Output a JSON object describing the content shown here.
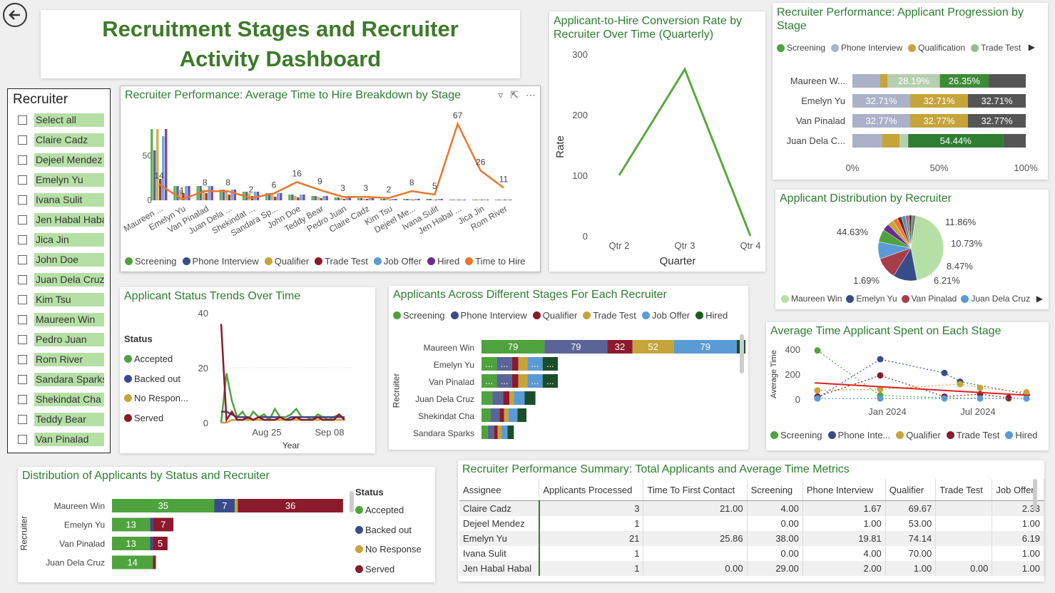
{
  "header": {
    "title": "Recruitment Stages and Recruiter Activity Dashboard"
  },
  "slicer": {
    "title": "Recruiter",
    "items": [
      "Select all",
      "Claire Cadz",
      "Dejeel Mendez",
      "Emelyn Yu",
      "Ivana Sulit",
      "Jen Habal Habal",
      "Jica Jin",
      "John Doe",
      "Juan Dela Cruz",
      "Kim Tsu",
      "Maureen Win",
      "Pedro Juan",
      "Rom River",
      "Sandara Sparks",
      "Shekindat Cha",
      "Teddy Bear",
      "Van Pinalad"
    ]
  },
  "colors": {
    "screening": "#4ea33d",
    "phone": "#384c8a",
    "qualifier": "#c5a43a",
    "trade": "#8b1a2c",
    "joboffer": "#5b9bd5",
    "hired": "#6a2c91",
    "time": "#e8772e",
    "hired2": "#1b5e20"
  },
  "time_to_hire": {
    "title": "Recruiter Performance: Average Time to Hire Breakdown by Stage",
    "legend": [
      "Screening",
      "Phone Interview",
      "Qualifier",
      "Trade Test",
      "Job Offer",
      "Hired",
      "Time to Hire"
    ],
    "chart_data": {
      "type": "bar",
      "categories": [
        "Maureen ...",
        "Emelyn Yu",
        "Van Pinalad",
        "Juan Dela ...",
        "Shekindat ...",
        "Sandara Sp...",
        "John Doe",
        "Teddy Bear",
        "Pedro Juan",
        "Claire Cadz",
        "Kim Tsu",
        "Dejeel Me...",
        "Ivana Sulit",
        "Jen Habal ...",
        "Jica Jin",
        "Rom River"
      ],
      "y_ticks": [
        "0",
        "50"
      ],
      "line_labels": [
        "14",
        "1",
        "8",
        "8",
        "2",
        "6",
        "16",
        "9",
        "3",
        "3",
        "2",
        "8",
        "5",
        "67",
        "26",
        "11"
      ],
      "line_values": [
        14,
        1,
        8,
        8,
        2,
        6,
        16,
        9,
        3,
        3,
        2,
        8,
        5,
        67,
        26,
        11
      ]
    }
  },
  "conversion": {
    "title": "Applicant-to-Hire Conversion Rate by Recruiter Over Time (Quarterly)",
    "chart_data": {
      "type": "line",
      "categories": [
        "Qtr 2",
        "Qtr 3",
        "Qtr 4"
      ],
      "values": [
        100,
        275,
        0
      ],
      "xlabel": "Quarter",
      "ylabel": "Rate",
      "y_ticks": [
        "0",
        "100",
        "200",
        "300"
      ],
      "ylim": [
        0,
        300
      ]
    }
  },
  "progression": {
    "title": "Recruiter Performance: Applicant Progression by Stage",
    "legend": [
      "Screening",
      "Phone Interview",
      "Qualification",
      "Trade Test"
    ],
    "chart_data": {
      "type": "bar",
      "categories": [
        "Maureen W...",
        "Emelyn Yu",
        "Van Pinalad",
        "Juan Dela C..."
      ],
      "rows": [
        [
          {
            "c": "#aab1c9",
            "v": 15
          },
          {
            "c": "#c5a43a",
            "v": 4
          },
          {
            "c": "#b6cfb0",
            "v": 0
          },
          {
            "c": "#b6cfb0",
            "v": 28.19,
            "l": "28.19%"
          },
          {
            "c": "#3d8b37",
            "v": 26.35,
            "l": "26.35%"
          },
          {
            "c": "#555555",
            "v": 20
          }
        ],
        [
          {
            "c": "#aab1c9",
            "v": 32.71,
            "l": "32.71%"
          },
          {
            "c": "#c5a43a",
            "v": 32.71,
            "l": "32.71%"
          },
          {
            "c": "#555555",
            "v": 32.71,
            "l": "32.71%"
          }
        ],
        [
          {
            "c": "#aab1c9",
            "v": 32.77,
            "l": "32.77%"
          },
          {
            "c": "#c5a43a",
            "v": 32.77,
            "l": "32.77%"
          },
          {
            "c": "#555555",
            "v": 32.77,
            "l": "32.77%"
          }
        ],
        [
          {
            "c": "#aab1c9",
            "v": 17
          },
          {
            "c": "#c5a43a",
            "v": 10
          },
          {
            "c": "#b6cfb0",
            "v": 5
          },
          {
            "c": "#2e7d32",
            "v": 54.44,
            "l": "54.44%"
          },
          {
            "c": "#555555",
            "v": 13
          }
        ]
      ],
      "x_ticks": [
        "0%",
        "50%",
        "100%"
      ]
    }
  },
  "distribution": {
    "title": "Applicant Distribution by Recruiter",
    "legend": [
      "Maureen Win",
      "Emelyn Yu",
      "Van Pinalad",
      "Juan Dela Cruz"
    ],
    "chart_data": {
      "type": "pie",
      "slices": [
        {
          "v": 44.63,
          "c": "#b6dfa6",
          "l": "44.63%"
        },
        {
          "v": 11.86,
          "c": "#384c8a",
          "l": "11.86%"
        },
        {
          "v": 10.73,
          "c": "#a83d4a",
          "l": "10.73%"
        },
        {
          "v": 8.47,
          "c": "#5b9bd5",
          "l": "8.47%"
        },
        {
          "v": 6.21,
          "c": "#4ea33d",
          "l": "6.21%"
        },
        {
          "v": 3.5,
          "c": "#6a2c91",
          "l": ""
        },
        {
          "v": 3.0,
          "c": "#c5a43a",
          "l": ""
        },
        {
          "v": 2.5,
          "c": "#e8772e",
          "l": ""
        },
        {
          "v": 2.0,
          "c": "#8b1a2c",
          "l": ""
        },
        {
          "v": 2.0,
          "c": "#2aa8a8",
          "l": ""
        },
        {
          "v": 1.69,
          "c": "#d94f8a",
          "l": "1.69%"
        },
        {
          "v": 1.5,
          "c": "#1b5e20",
          "l": ""
        },
        {
          "v": 1.91,
          "c": "#7d7d7d",
          "l": ""
        }
      ]
    }
  },
  "status_trends": {
    "title": "Applicant Status Trends Over Time",
    "legend_title": "Status",
    "legend": [
      "Accepted",
      "Backed out",
      "No Respon...",
      "Served"
    ],
    "chart_data": {
      "type": "line",
      "x_ticks": [
        "Aug 25",
        "Sep 08"
      ],
      "xlabel": "Year",
      "y_ticks": [
        "0",
        "20",
        "40"
      ],
      "ylim": [
        0,
        40
      ],
      "series": [
        {
          "c": "#4ea33d",
          "values": [
            0,
            18,
            8,
            2,
            4,
            1,
            4,
            2,
            3,
            1,
            5,
            2,
            2,
            3,
            5,
            2,
            2,
            1,
            3,
            2,
            1,
            2,
            3,
            1
          ]
        },
        {
          "c": "#384c8a",
          "values": [
            4,
            4,
            3,
            2,
            2,
            2,
            1,
            2,
            2,
            2,
            2,
            2,
            1,
            2,
            2,
            2,
            2,
            2,
            2,
            2,
            2,
            2,
            2,
            2
          ]
        },
        {
          "c": "#c5a43a",
          "values": [
            0,
            0,
            1,
            1,
            1,
            1,
            1,
            1,
            1,
            1,
            1,
            1,
            1,
            1,
            1,
            1,
            1,
            1,
            1,
            1,
            1,
            1,
            1,
            1
          ]
        },
        {
          "c": "#8b1a2c",
          "values": [
            36,
            1,
            4,
            1,
            1,
            2,
            1,
            2,
            1,
            1,
            1,
            2,
            1,
            1,
            2,
            1,
            1,
            1,
            2,
            1,
            1,
            1,
            3,
            1
          ]
        }
      ]
    }
  },
  "stages": {
    "title": "Applicants Across Different Stages For Each Recruiter",
    "legend": [
      "Screening",
      "Phone Interview",
      "Qualifier",
      "Trade Test",
      "Job Offer",
      "Hired"
    ],
    "ylabel": "Recruiter",
    "chart_data": {
      "type": "bar",
      "categories": [
        "Maureen Win",
        "Emelyn Yu",
        "Van Pinalad",
        "Juan Dela Cruz",
        "Shekindat Cha",
        "Sandara Sparks"
      ],
      "rows": [
        [
          {
            "c": "#4ea33d",
            "w": 70,
            "l": "79"
          },
          {
            "c": "#5a6496",
            "w": 70,
            "l": "79"
          },
          {
            "c": "#8b1a2c",
            "w": 28,
            "l": "32"
          },
          {
            "c": "#c5a43a",
            "w": 46,
            "l": "52"
          },
          {
            "c": "#5b9bd5",
            "w": 70,
            "l": "79"
          },
          {
            "c": "#1b4d2a",
            "w": 70,
            "l": "79"
          }
        ],
        [
          {
            "c": "#4ea33d",
            "w": 17,
            "l": "..."
          },
          {
            "c": "#5a6496",
            "w": 17,
            "l": "..."
          },
          {
            "c": "#8b1a2c",
            "w": 7,
            "l": ""
          },
          {
            "c": "#c5a43a",
            "w": 10,
            "l": ""
          },
          {
            "c": "#5b9bd5",
            "w": 17,
            "l": "..."
          },
          {
            "c": "#1b4d2a",
            "w": 17,
            "l": "..."
          }
        ],
        [
          {
            "c": "#4ea33d",
            "w": 17,
            "l": "..."
          },
          {
            "c": "#5a6496",
            "w": 17,
            "l": "..."
          },
          {
            "c": "#8b1a2c",
            "w": 7,
            "l": ""
          },
          {
            "c": "#c5a43a",
            "w": 10,
            "l": ""
          },
          {
            "c": "#5b9bd5",
            "w": 17,
            "l": "..."
          },
          {
            "c": "#1b4d2a",
            "w": 17,
            "l": "..."
          }
        ],
        [
          {
            "c": "#4ea33d",
            "w": 12,
            "l": ""
          },
          {
            "c": "#5a6496",
            "w": 12,
            "l": ""
          },
          {
            "c": "#8b1a2c",
            "w": 7,
            "l": ""
          },
          {
            "c": "#c5a43a",
            "w": 5,
            "l": ""
          },
          {
            "c": "#5b9bd5",
            "w": 12,
            "l": ""
          },
          {
            "c": "#1b4d2a",
            "w": 12,
            "l": ""
          }
        ],
        [
          {
            "c": "#4ea33d",
            "w": 10,
            "l": ""
          },
          {
            "c": "#5a6496",
            "w": 10,
            "l": ""
          },
          {
            "c": "#8b1a2c",
            "w": 5,
            "l": ""
          },
          {
            "c": "#c5a43a",
            "w": 5,
            "l": ""
          },
          {
            "c": "#5b9bd5",
            "w": 10,
            "l": ""
          },
          {
            "c": "#1b4d2a",
            "w": 10,
            "l": ""
          }
        ],
        [
          {
            "c": "#4ea33d",
            "w": 7,
            "l": ""
          },
          {
            "c": "#5a6496",
            "w": 7,
            "l": ""
          },
          {
            "c": "#8b1a2c",
            "w": 4,
            "l": ""
          },
          {
            "c": "#c5a43a",
            "w": 4,
            "l": ""
          },
          {
            "c": "#5b9bd5",
            "w": 7,
            "l": ""
          },
          {
            "c": "#1b4d2a",
            "w": 7,
            "l": ""
          }
        ]
      ]
    }
  },
  "avg_time": {
    "title": "Average Time Applicant Spent on Each Stage",
    "legend": [
      "Screening",
      "Phone Inte...",
      "Qualifier",
      "Trade Test",
      "Hired"
    ],
    "chart_data": {
      "type": "scatter",
      "ylabel": "Average Time",
      "y_ticks": [
        "0",
        "200",
        "400"
      ],
      "x_ticks": [
        "Jan 2024",
        "Jul 2024"
      ],
      "ylim": [
        0,
        400
      ]
    }
  },
  "status_dist": {
    "title": "Distribution of Applicants by Status and Recruiter",
    "legend_title": "Status",
    "legend": [
      "Accepted",
      "Backed out",
      "No Response",
      "Served"
    ],
    "ylabel": "Recruiter",
    "chart_data": {
      "type": "bar",
      "categories": [
        "Maureen Win",
        "Emelyn Yu",
        "Van Pinalad",
        "Juan Dela Cruz"
      ],
      "rows": [
        [
          {
            "c": "#4ea33d",
            "v": 35,
            "l": "35"
          },
          {
            "c": "#384c8a",
            "v": 7,
            "l": "7"
          },
          {
            "c": "#c5a43a",
            "v": 1,
            "l": ""
          },
          {
            "c": "#8b1a2c",
            "v": 36,
            "l": "36"
          }
        ],
        [
          {
            "c": "#4ea33d",
            "v": 13,
            "l": "13"
          },
          {
            "c": "#384c8a",
            "v": 1,
            "l": ""
          },
          {
            "c": "#8b1a2c",
            "v": 7,
            "l": "7"
          }
        ],
        [
          {
            "c": "#4ea33d",
            "v": 13,
            "l": "13"
          },
          {
            "c": "#384c8a",
            "v": 1,
            "l": ""
          },
          {
            "c": "#8b1a2c",
            "v": 5,
            "l": "5"
          }
        ],
        [
          {
            "c": "#4ea33d",
            "v": 14,
            "l": "14"
          },
          {
            "c": "#8b1a2c",
            "v": 1,
            "l": ""
          }
        ]
      ]
    }
  },
  "summary": {
    "title": "Recruiter Performance Summary: Total Applicants and Average Time Metrics",
    "columns": [
      "Assignee",
      "Applicants Processed",
      "Time To First Contact",
      "Screening",
      "Phone Interview",
      "Qualifier",
      "Trade Test",
      "Job Offer"
    ],
    "rows": [
      [
        "Claire Cadz",
        "3",
        "21.00",
        "4.00",
        "1.67",
        "69.67",
        "",
        "2.33"
      ],
      [
        "Dejeel Mendez",
        "1",
        "",
        "0.00",
        "1.00",
        "53.00",
        "",
        "1.00"
      ],
      [
        "Emelyn Yu",
        "21",
        "25.86",
        "38.00",
        "19.81",
        "74.14",
        "",
        "6.19"
      ],
      [
        "Ivana Sulit",
        "1",
        "",
        "0.00",
        "4.00",
        "70.00",
        "",
        "1.00"
      ],
      [
        "Jen Habal Habal",
        "1",
        "0.00",
        "29.00",
        "2.00",
        "1.00",
        "0.00",
        "1.00"
      ]
    ]
  }
}
